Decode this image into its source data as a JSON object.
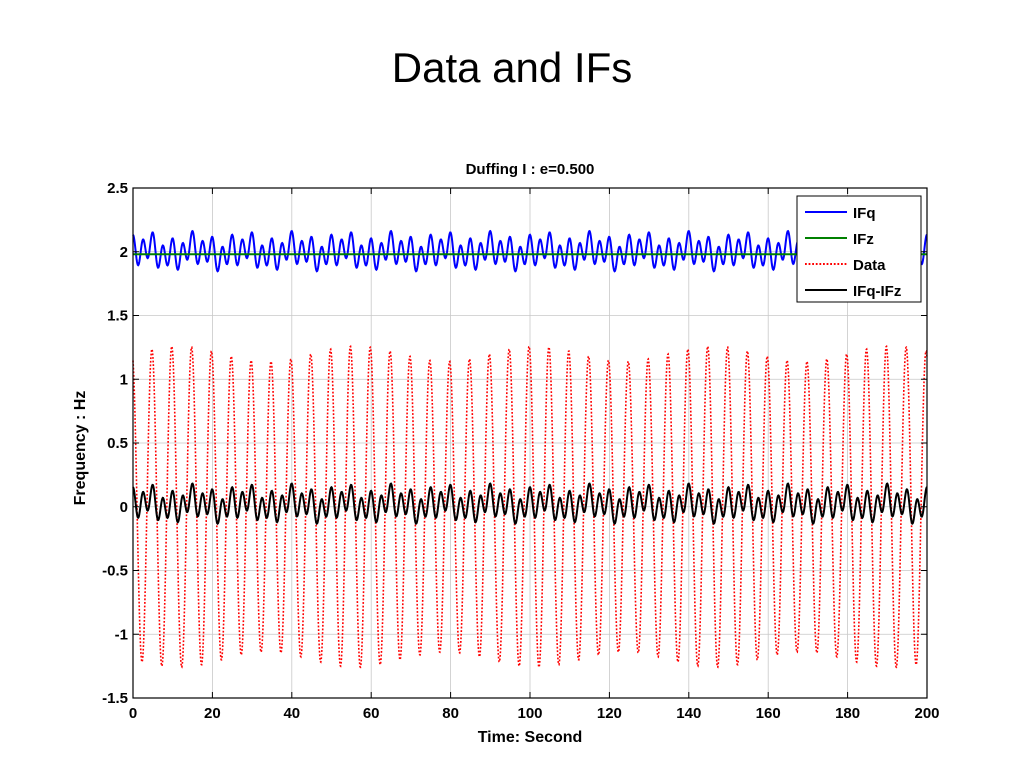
{
  "slide": {
    "title": "Data and IFs"
  },
  "chart_data": {
    "type": "line",
    "title": "Duffing I : e=0.500",
    "xlabel": "Time: Second",
    "ylabel": "Frequency : Hz",
    "xlim": [
      0,
      200
    ],
    "ylim": [
      -1.5,
      2.5
    ],
    "xticks": [
      0,
      20,
      40,
      60,
      80,
      100,
      120,
      140,
      160,
      180,
      200
    ],
    "yticks": [
      -1.5,
      -1,
      -0.5,
      0,
      0.5,
      1,
      1.5,
      2,
      2.5
    ],
    "xtick_labels": [
      "0",
      "20",
      "40",
      "60",
      "80",
      "100",
      "120",
      "140",
      "160",
      "180",
      "200"
    ],
    "ytick_labels": [
      "-1.5",
      "-1",
      "-0.5",
      "0",
      "0.5",
      "1",
      "1.5",
      "2",
      "2.5"
    ],
    "grid": true,
    "legend_position": "top-right",
    "series": [
      {
        "name": "IFq",
        "color": "#0000ff",
        "style": "solid",
        "mean": 2.0,
        "oscillation_period": 2.5,
        "amplitude_range": [
          1.88,
          2.2
        ]
      },
      {
        "name": "IFz",
        "color": "#008000",
        "style": "solid",
        "mean": 1.98,
        "oscillation_period": null,
        "amplitude_range": [
          1.98,
          1.98
        ]
      },
      {
        "name": "Data",
        "color": "#ff0000",
        "style": "dotted",
        "mean": 0.0,
        "oscillation_period": 5.0,
        "amplitude_range": [
          -1.3,
          1.3
        ]
      },
      {
        "name": "IFq-IFz",
        "color": "#000000",
        "style": "solid",
        "mean": 0.0,
        "oscillation_period": 2.5,
        "amplitude_range": [
          -0.12,
          0.22
        ]
      }
    ]
  }
}
